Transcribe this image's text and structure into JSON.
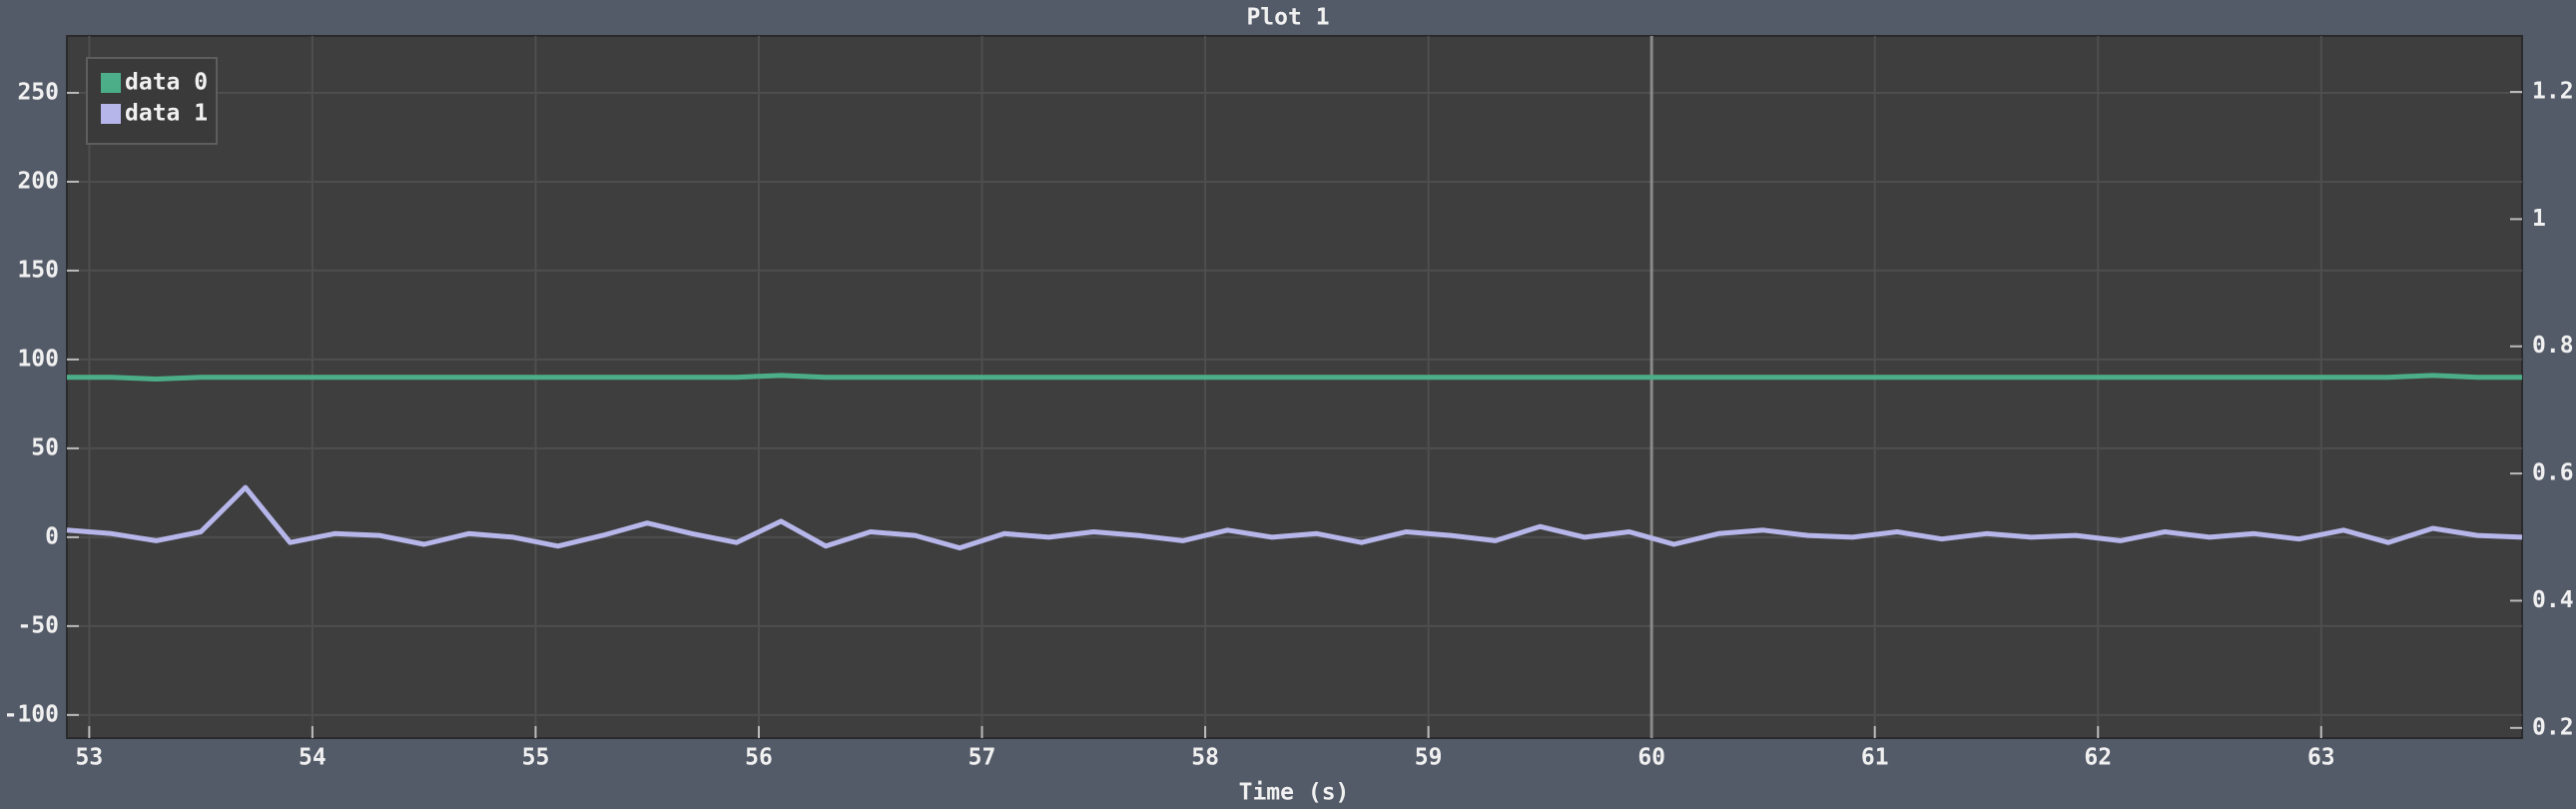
{
  "chart_data": {
    "type": "line",
    "title": "Plot 1",
    "x_label": "Time (s)",
    "x": [
      52.9,
      53.1,
      53.3,
      53.5,
      53.7,
      53.9,
      54.1,
      54.3,
      54.5,
      54.7,
      54.9,
      55.1,
      55.3,
      55.5,
      55.7,
      55.9,
      56.1,
      56.3,
      56.5,
      56.7,
      56.9,
      57.1,
      57.3,
      57.5,
      57.7,
      57.9,
      58.1,
      58.3,
      58.5,
      58.7,
      58.9,
      59.1,
      59.3,
      59.5,
      59.7,
      59.9,
      60.1,
      60.3,
      60.5,
      60.7,
      60.9,
      61.1,
      61.3,
      61.5,
      61.7,
      61.9,
      62.1,
      62.3,
      62.5,
      62.7,
      62.9,
      63.1,
      63.3,
      63.5,
      63.7,
      63.9
    ],
    "series": [
      {
        "name": "data 0",
        "color": "#4cae88",
        "values": [
          90,
          90,
          89,
          90,
          90,
          90,
          90,
          90,
          90,
          90,
          90,
          90,
          90,
          90,
          90,
          90,
          91,
          90,
          90,
          90,
          90,
          90,
          90,
          90,
          90,
          90,
          90,
          90,
          90,
          90,
          90,
          90,
          90,
          90,
          90,
          90,
          90,
          90,
          90,
          90,
          90,
          90,
          90,
          90,
          90,
          90,
          90,
          90,
          90,
          90,
          90,
          90,
          90,
          91,
          90,
          90
        ]
      },
      {
        "name": "data 1",
        "color": "#b6b6ea",
        "values": [
          4,
          2,
          -2,
          3,
          28,
          -3,
          2,
          1,
          -4,
          2,
          0,
          -5,
          1,
          8,
          2,
          -3,
          9,
          -5,
          3,
          1,
          -6,
          2,
          0,
          3,
          1,
          -2,
          4,
          0,
          2,
          -3,
          3,
          1,
          -2,
          6,
          0,
          3,
          -4,
          2,
          4,
          1,
          0,
          3,
          -1,
          2,
          0,
          1,
          -2,
          3,
          0,
          2,
          -1,
          4,
          -3,
          5,
          1,
          0
        ]
      }
    ],
    "xlim": [
      52.9,
      63.9
    ],
    "xticks": [
      53,
      54,
      55,
      56,
      57,
      58,
      59,
      60,
      61,
      62,
      63
    ],
    "ylim": [
      -113,
      282
    ],
    "yticks": [
      -100,
      -50,
      0,
      50,
      100,
      150,
      200,
      250
    ],
    "y2lim": [
      0.184,
      1.288
    ],
    "y2ticks": [
      0.2,
      0.4,
      0.6,
      0.8,
      1,
      1.2
    ],
    "vline": 60,
    "grid": true,
    "legend": "upper left"
  }
}
